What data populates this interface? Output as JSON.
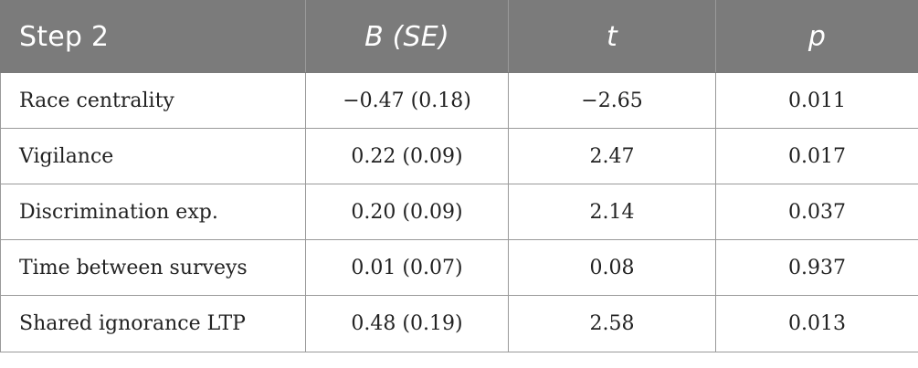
{
  "table": {
    "headers": [
      "Step 2",
      "B (SE)",
      "t",
      "p"
    ],
    "rows": [
      [
        "Race centrality",
        "−0.47 (0.18)",
        "−2.65",
        "0.011"
      ],
      [
        "Vigilance",
        "0.22 (0.09)",
        "2.47",
        "0.017"
      ],
      [
        "Discrimination exp.",
        "0.20 (0.09)",
        "2.14",
        "0.037"
      ],
      [
        "Time between surveys",
        "0.01 (0.07)",
        "0.08",
        "0.937"
      ],
      [
        "Shared ignorance LTP",
        "0.48 (0.19)",
        "2.58",
        "0.013"
      ]
    ]
  },
  "colors": {
    "header_bg": "#7b7b7b",
    "header_text": "#ffffff",
    "border": "#9a9a9a",
    "body_text": "#222222"
  }
}
